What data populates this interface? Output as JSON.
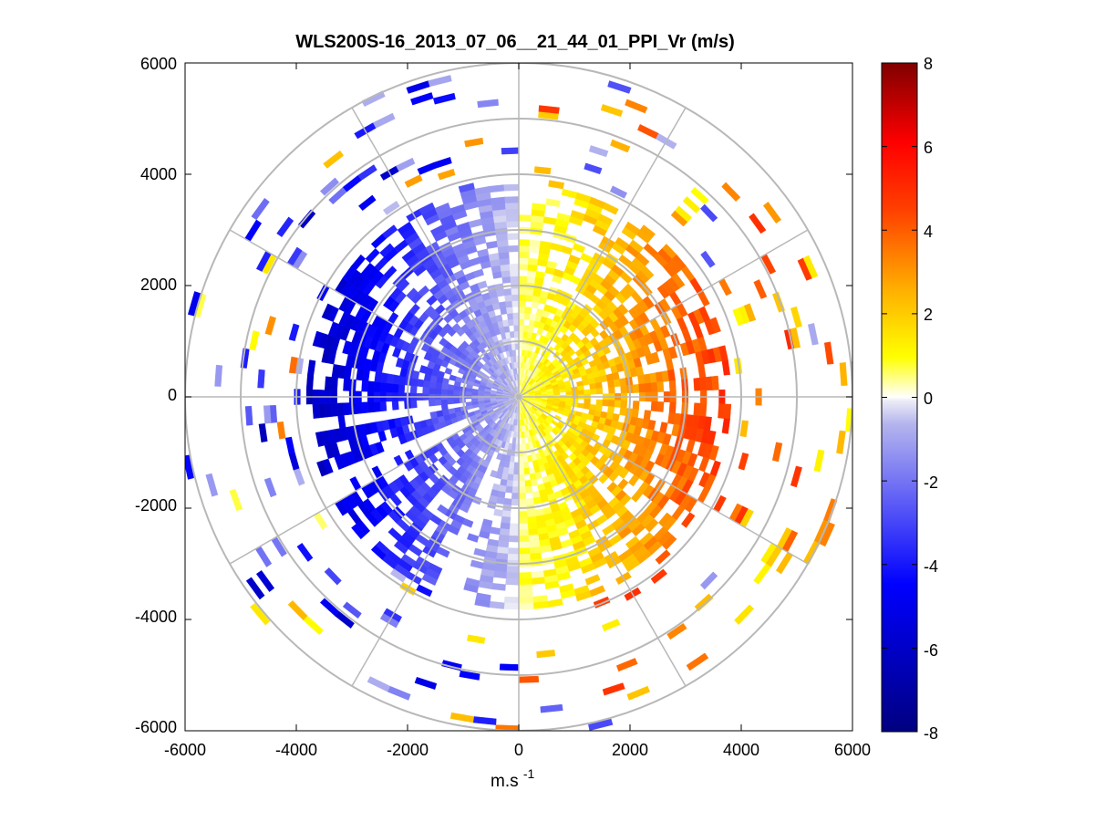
{
  "chart_data": {
    "type": "heatmap",
    "subtype": "polar-ppi",
    "title": "WLS200S-16_2013_07_06__21_44_01_PPI_Vr (m/s)",
    "xlabel": "m.s",
    "xlabel_superscript": "-1",
    "ylabel": "",
    "xlim": [
      -6000,
      6000
    ],
    "ylim": [
      -6000,
      6000
    ],
    "xticks": [
      -6000,
      -4000,
      -2000,
      0,
      2000,
      4000,
      6000
    ],
    "yticks": [
      6000,
      4000,
      2000,
      0,
      -2000,
      -4000,
      -6000
    ],
    "xtick_labels": [
      "-6000",
      "-4000",
      "-2000",
      "0",
      "2000",
      "4000",
      "6000"
    ],
    "ytick_labels": [
      "6000",
      "4000",
      "2000",
      "0",
      "-2000",
      "-4000",
      "-6000"
    ],
    "range_rings_m": [
      1000,
      2000,
      3000,
      4000,
      5000,
      6000
    ],
    "radial_lines_deg": [
      0,
      30,
      60,
      90,
      120,
      150,
      180,
      210,
      240,
      270,
      300,
      330
    ],
    "colorbar": {
      "range": [
        -8,
        8
      ],
      "ticks": [
        8,
        6,
        4,
        2,
        0,
        -2,
        -4,
        -6,
        -8
      ],
      "tick_labels": [
        "8",
        "6",
        "4",
        "2",
        "0",
        "-2",
        "-4",
        "-6",
        "-8"
      ],
      "colormap": [
        "#000080",
        "#0000ff",
        "#e6e6f5",
        "#ffffff",
        "#ffff00",
        "#ff8000",
        "#ff0000",
        "#800000"
      ]
    },
    "field_description": "Radial velocity: negative (blue) values on the western half, positive (yellow-orange-red) values on the eastern half, densest within ~4000 m range"
  }
}
